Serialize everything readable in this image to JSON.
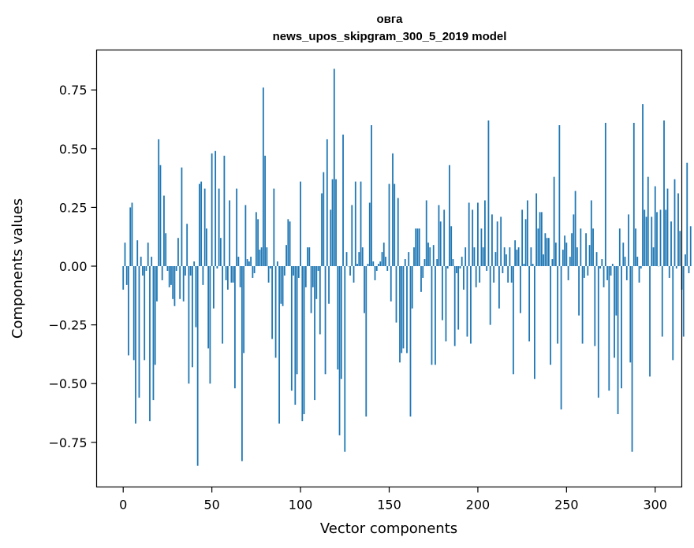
{
  "chart_data": {
    "type": "bar",
    "title": "овга",
    "subtitle": "news_upos_skipgram_300_5_2019 model",
    "xlabel": "Vector components",
    "ylabel": "Components values",
    "xlim": [
      -15,
      315
    ],
    "ylim": [
      -0.94,
      0.92
    ],
    "xticks": [
      0,
      50,
      100,
      150,
      200,
      250,
      300
    ],
    "yticks": [
      -0.75,
      -0.5,
      -0.25,
      0.0,
      0.25,
      0.5,
      0.75
    ],
    "ytick_labels": [
      "−0.75",
      "−0.50",
      "−0.25",
      "0.00",
      "0.25",
      "0.50",
      "0.75"
    ],
    "xtick_labels": [
      "0",
      "50",
      "100",
      "150",
      "200",
      "250",
      "300"
    ],
    "bar_color": "#1f77b4",
    "grid": false,
    "values": [
      -0.1,
      0.1,
      -0.08,
      -0.38,
      0.25,
      0.27,
      -0.4,
      -0.67,
      0.11,
      -0.56,
      0.04,
      -0.04,
      -0.4,
      -0.02,
      0.1,
      -0.66,
      0.04,
      -0.57,
      -0.42,
      -0.15,
      0.54,
      0.43,
      -0.06,
      0.3,
      0.14,
      -0.02,
      -0.09,
      -0.08,
      -0.14,
      -0.17,
      -0.02,
      0.12,
      -0.14,
      0.42,
      -0.15,
      -0.04,
      0.18,
      -0.5,
      -0.04,
      -0.43,
      0.02,
      -0.26,
      -0.85,
      0.35,
      0.36,
      -0.08,
      0.33,
      0.16,
      -0.35,
      -0.5,
      0.48,
      -0.18,
      0.49,
      -0.01,
      0.33,
      0.12,
      -0.33,
      0.47,
      -0.06,
      -0.1,
      0.28,
      -0.07,
      -0.07,
      -0.52,
      0.33,
      0.04,
      -0.09,
      -0.83,
      -0.37,
      0.26,
      0.03,
      0.02,
      0.04,
      -0.05,
      -0.03,
      0.23,
      0.2,
      0.07,
      0.08,
      0.76,
      0.47,
      0.08,
      -0.07,
      -0.01,
      -0.31,
      0.33,
      -0.39,
      0.02,
      -0.67,
      -0.16,
      -0.17,
      -0.04,
      0.09,
      0.2,
      0.19,
      -0.53,
      -0.04,
      -0.59,
      -0.46,
      -0.05,
      0.36,
      -0.66,
      -0.63,
      -0.09,
      0.08,
      0.08,
      -0.2,
      -0.09,
      -0.57,
      -0.14,
      -0.02,
      -0.29,
      0.31,
      0.4,
      -0.46,
      0.54,
      -0.16,
      0.24,
      0.37,
      0.84,
      0.37,
      -0.44,
      -0.72,
      -0.48,
      0.56,
      -0.79,
      0.06,
      0.0,
      -0.04,
      0.26,
      -0.07,
      0.36,
      0.01,
      0.06,
      0.36,
      0.08,
      -0.2,
      -0.64,
      0.01,
      0.27,
      0.6,
      0.02,
      -0.06,
      -0.02,
      0.01,
      0.02,
      0.06,
      0.1,
      0.04,
      -0.02,
      0.35,
      -0.15,
      0.48,
      0.35,
      -0.24,
      0.29,
      -0.41,
      -0.37,
      -0.35,
      0.03,
      -0.37,
      0.06,
      -0.64,
      -0.18,
      0.08,
      0.16,
      0.16,
      0.16,
      -0.11,
      -0.05,
      0.03,
      0.28,
      0.1,
      0.08,
      -0.42,
      0.09,
      -0.42,
      0.03,
      0.26,
      0.19,
      -0.23,
      0.24,
      -0.32,
      -0.01,
      0.43,
      0.17,
      0.03,
      -0.34,
      -0.03,
      -0.27,
      -0.01,
      0.04,
      -0.1,
      0.08,
      -0.3,
      0.27,
      -0.33,
      0.24,
      0.08,
      -0.09,
      0.27,
      -0.07,
      0.16,
      0.08,
      0.28,
      -0.02,
      0.62,
      -0.25,
      0.22,
      -0.07,
      0.06,
      0.19,
      -0.18,
      0.21,
      -0.03,
      0.08,
      0.05,
      -0.07,
      0.08,
      -0.07,
      -0.46,
      0.11,
      0.07,
      0.08,
      -0.2,
      0.24,
      0.01,
      0.2,
      0.28,
      -0.32,
      0.08,
      0.01,
      -0.48,
      0.31,
      0.16,
      0.23,
      0.23,
      0.05,
      0.14,
      0.12,
      0.12,
      -0.42,
      0.03,
      0.38,
      0.1,
      -0.33,
      0.6,
      -0.61,
      0.07,
      0.13,
      0.1,
      -0.06,
      0.04,
      0.14,
      0.22,
      0.32,
      0.08,
      -0.21,
      0.16,
      -0.33,
      -0.05,
      0.14,
      -0.04,
      0.09,
      0.28,
      0.16,
      -0.34,
      0.06,
      -0.56,
      -0.01,
      0.03,
      -0.09,
      0.61,
      -0.06,
      -0.53,
      -0.04,
      0.01,
      -0.39,
      -0.21,
      -0.63,
      0.16,
      -0.52,
      0.1,
      0.04,
      -0.06,
      0.22,
      -0.41,
      -0.79,
      0.61,
      0.16,
      0.04,
      -0.07,
      -0.01,
      0.69,
      0.24,
      0.21,
      0.38,
      -0.47,
      0.21,
      0.08,
      0.34,
      0.23,
      0.0,
      0.24,
      -0.3,
      0.62,
      0.24,
      0.33,
      -0.05,
      0.19,
      -0.4,
      0.37,
      -0.01,
      0.31,
      0.15,
      -0.1,
      -0.3,
      0.05,
      0.44,
      -0.03,
      0.17
    ]
  }
}
